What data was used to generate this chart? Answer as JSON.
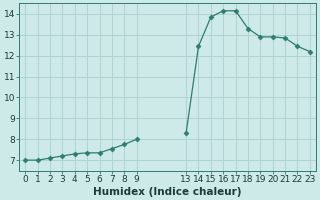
{
  "x": [
    0,
    1,
    2,
    3,
    4,
    5,
    6,
    7,
    8,
    9,
    13,
    14,
    15,
    16,
    17,
    18,
    19,
    20,
    21,
    22,
    23
  ],
  "y": [
    7.0,
    7.0,
    7.1,
    7.2,
    7.3,
    7.35,
    7.35,
    7.55,
    7.75,
    8.0,
    8.3,
    12.45,
    13.85,
    14.15,
    14.15,
    13.3,
    12.9,
    12.9,
    12.85,
    12.45,
    12.2
  ],
  "line_color": "#2e7d6e",
  "marker": "D",
  "marker_size": 2.5,
  "bg_color": "#ceeae8",
  "grid_color": "#aacfcc",
  "xlabel": "Humidex (Indice chaleur)",
  "xlim": [
    -0.5,
    23.5
  ],
  "ylim": [
    6.5,
    14.5
  ],
  "xticks": [
    0,
    1,
    2,
    3,
    4,
    5,
    6,
    7,
    8,
    9,
    13,
    14,
    15,
    16,
    17,
    18,
    19,
    20,
    21,
    22,
    23
  ],
  "yticks": [
    7,
    8,
    9,
    10,
    11,
    12,
    13,
    14
  ],
  "tick_fontsize": 6.5,
  "xlabel_fontsize": 7.5,
  "figsize": [
    3.2,
    2.0
  ],
  "dpi": 100
}
